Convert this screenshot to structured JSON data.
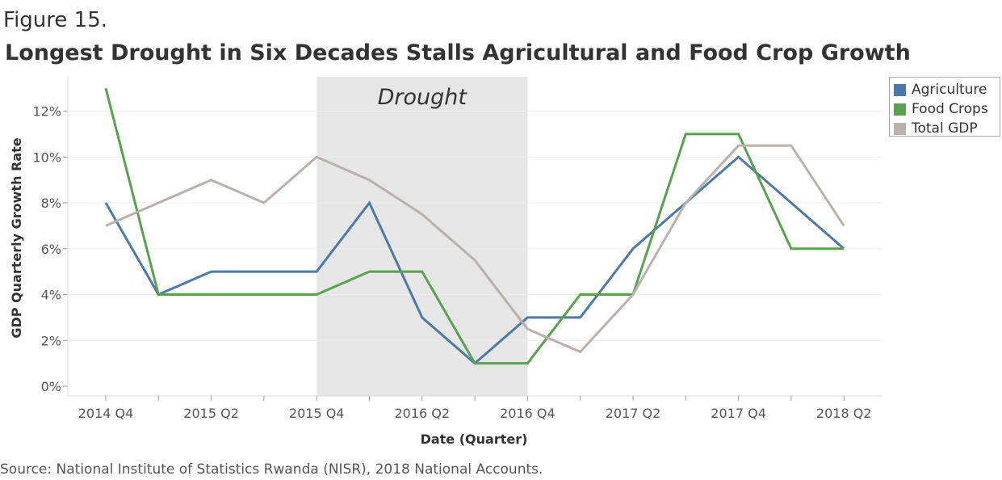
{
  "figure_label": "Figure 15.",
  "title": "Longest Drought in Six Decades Stalls Agricultural and Food Crop Growth",
  "source": "Source: National Institute of Statistics Rwanda (NISR), 2018 National Accounts.",
  "chart_data": {
    "type": "line",
    "title": "Longest Drought in Six Decades Stalls Agricultural and Food Crop Growth",
    "xlabel": "Date (Quarter)",
    "ylabel": "GDP Quarterly Growth Rate",
    "x": [
      "2014 Q4",
      "2015 Q1",
      "2015 Q2",
      "2015 Q3",
      "2015 Q4",
      "2016 Q1",
      "2016 Q2",
      "2016 Q3",
      "2016 Q4",
      "2017 Q1",
      "2017 Q2",
      "2017 Q3",
      "2017 Q4",
      "2018 Q1",
      "2018 Q2"
    ],
    "x_tick_labels": [
      "2014 Q4",
      "2015 Q2",
      "2015 Q4",
      "2016 Q2",
      "2016 Q4",
      "2017 Q2",
      "2017 Q4",
      "2018 Q2"
    ],
    "ylim": [
      0,
      13.5
    ],
    "y_ticks": [
      0,
      2,
      4,
      6,
      8,
      10,
      12
    ],
    "y_tick_labels": [
      "0%",
      "2%",
      "4%",
      "6%",
      "8%",
      "10%",
      "12%"
    ],
    "grid": true,
    "legend_position": "top-right",
    "series": [
      {
        "name": "Agriculture",
        "color": "#4e79a7",
        "values": [
          8,
          4,
          5,
          5,
          5,
          8,
          3,
          1,
          3,
          3,
          6,
          8,
          10,
          8,
          6
        ]
      },
      {
        "name": "Food Crops",
        "color": "#59a14f",
        "values": [
          13,
          4,
          4,
          4,
          4,
          5,
          5,
          1,
          1,
          4,
          4,
          11,
          11,
          6,
          6
        ]
      },
      {
        "name": "Total GDP",
        "color": "#bab0ac",
        "values": [
          7,
          8,
          9,
          8,
          10,
          9,
          7.5,
          5.5,
          2.5,
          1.5,
          4,
          8,
          10.5,
          10.5,
          7
        ]
      }
    ],
    "annotations": [
      {
        "type": "shaded-region",
        "label": "Drought",
        "x_start": "2015 Q4",
        "x_end": "2016 Q4",
        "color": "#e6e6e6"
      }
    ]
  }
}
